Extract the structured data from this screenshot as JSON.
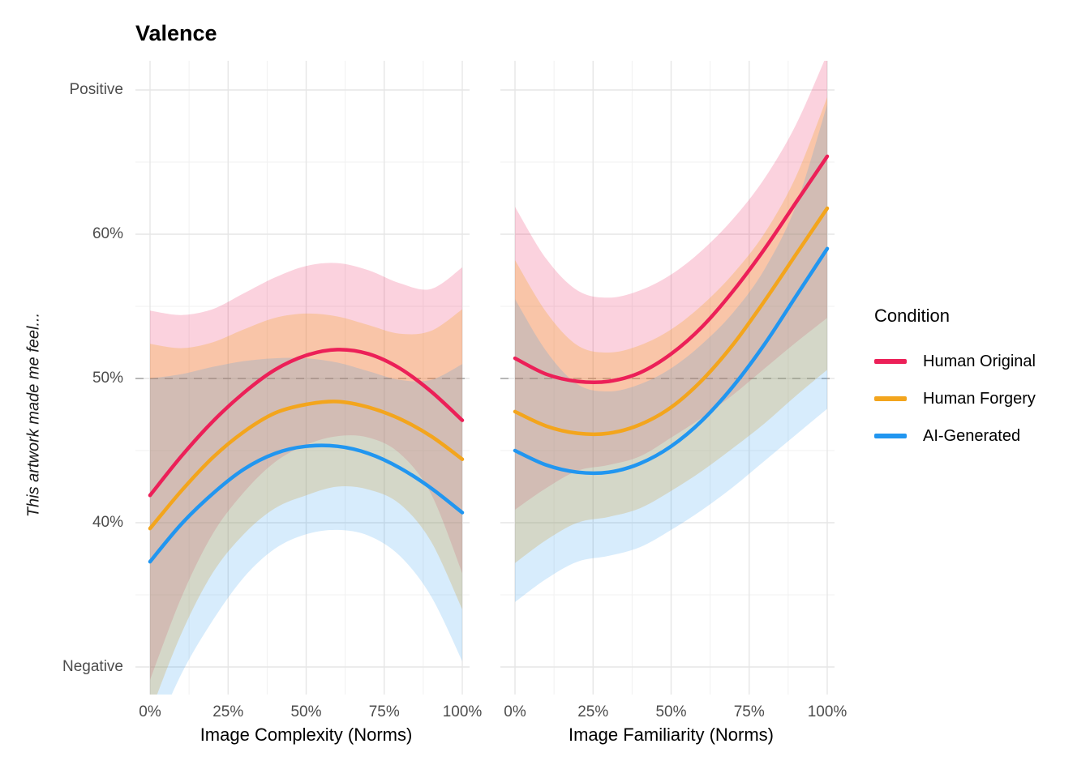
{
  "chart_data": {
    "type": "line",
    "title": "Valence",
    "ylabel": "This artwork made me feel...",
    "y_unit": "percent",
    "ylim": [
      28,
      72
    ],
    "y_ticks": [
      {
        "v": 70,
        "label": "Positive"
      },
      {
        "v": 60,
        "label": "60%"
      },
      {
        "v": 50,
        "label": "50%"
      },
      {
        "v": 40,
        "label": "40%"
      },
      {
        "v": 30,
        "label": "Negative"
      }
    ],
    "y_minor": [
      35,
      45,
      55,
      65
    ],
    "x_ticks": [
      {
        "v": 0,
        "label": "0%"
      },
      {
        "v": 25,
        "label": "25%"
      },
      {
        "v": 50,
        "label": "50%"
      },
      {
        "v": 75,
        "label": "75%"
      },
      {
        "v": 100,
        "label": "100%"
      }
    ],
    "x_minor": [
      12.5,
      37.5,
      62.5,
      87.5
    ],
    "reference_line": 50,
    "grid": "major+minor",
    "legend_position": "right",
    "legend": {
      "title": "Condition",
      "entries": [
        {
          "label": "Human Original",
          "color": "#EC2058"
        },
        {
          "label": "Human Forgery",
          "color": "#F3A51D"
        },
        {
          "label": "AI-Generated",
          "color": "#2196F0"
        }
      ]
    },
    "x": [
      0,
      10,
      20,
      30,
      40,
      50,
      60,
      70,
      80,
      90,
      100
    ],
    "panels": [
      {
        "xlabel": "Image Complexity (Norms)",
        "series": [
          {
            "name": "Human Original",
            "color": "#EC2058",
            "band_alpha": 0.2,
            "y": [
              41.9,
              44.6,
              47.0,
              49.0,
              50.6,
              51.6,
              52.0,
              51.7,
              50.7,
              49.1,
              47.1
            ],
            "hi": [
              54.7,
              54.4,
              54.8,
              55.9,
              57.0,
              57.8,
              58.0,
              57.5,
              56.6,
              56.2,
              57.7
            ],
            "lo": [
              29.1,
              34.8,
              39.2,
              42.1,
              44.2,
              45.4,
              46.0,
              45.9,
              44.8,
              42.0,
              36.5
            ]
          },
          {
            "name": "Human Forgery",
            "color": "#F3A51D",
            "band_alpha": 0.28,
            "y": [
              39.6,
              42.2,
              44.5,
              46.3,
              47.6,
              48.2,
              48.4,
              48.0,
              47.2,
              46.0,
              44.4
            ],
            "hi": [
              52.4,
              52.1,
              52.5,
              53.4,
              54.2,
              54.5,
              54.3,
              53.7,
              53.1,
              53.3,
              54.8
            ],
            "lo": [
              26.8,
              32.3,
              36.5,
              39.2,
              41.0,
              41.9,
              42.5,
              42.3,
              41.3,
              38.7,
              34.0
            ]
          },
          {
            "name": "AI-Generated",
            "color": "#2196F0",
            "band_alpha": 0.18,
            "y": [
              37.3,
              39.9,
              42.0,
              43.7,
              44.8,
              45.3,
              45.3,
              44.8,
              43.8,
              42.4,
              40.7
            ],
            "hi": [
              50.0,
              50.3,
              50.8,
              51.2,
              51.4,
              51.4,
              51.1,
              50.5,
              49.9,
              49.9,
              51.0
            ],
            "lo": [
              24.6,
              29.5,
              33.2,
              36.2,
              38.2,
              39.2,
              39.5,
              39.1,
              37.7,
              34.9,
              30.4
            ]
          }
        ]
      },
      {
        "xlabel": "Image Familiarity (Norms)",
        "series": [
          {
            "name": "Human Original",
            "color": "#EC2058",
            "band_alpha": 0.2,
            "y": [
              51.4,
              50.3,
              49.8,
              49.8,
              50.4,
              51.7,
              53.6,
              56.1,
              59.0,
              62.2,
              65.4
            ],
            "hi": [
              61.9,
              58.3,
              56.1,
              55.6,
              56.1,
              57.2,
              58.9,
              61.1,
              63.9,
              67.6,
              72.5
            ],
            "lo": [
              40.9,
              42.4,
              43.6,
              44.0,
              44.6,
              45.9,
              47.3,
              48.9,
              50.7,
              52.5,
              54.2
            ]
          },
          {
            "name": "Human Forgery",
            "color": "#F3A51D",
            "band_alpha": 0.28,
            "y": [
              47.7,
              46.7,
              46.2,
              46.2,
              46.8,
              48.0,
              49.9,
              52.4,
              55.4,
              58.6,
              61.8
            ],
            "hi": [
              58.2,
              54.6,
              52.3,
              51.8,
              52.3,
              53.4,
              55.1,
              57.3,
              60.1,
              64.0,
              69.5
            ],
            "lo": [
              37.2,
              38.8,
              40.0,
              40.4,
              41.0,
              42.2,
              43.6,
              45.2,
              46.9,
              48.8,
              50.6
            ]
          },
          {
            "name": "AI-Generated",
            "color": "#2196F0",
            "band_alpha": 0.18,
            "y": [
              45.0,
              44.0,
              43.5,
              43.5,
              44.1,
              45.3,
              47.1,
              49.5,
              52.4,
              55.7,
              59.0
            ],
            "hi": [
              55.5,
              51.9,
              49.6,
              49.1,
              49.6,
              50.7,
              52.4,
              54.6,
              57.6,
              62.0,
              69.0
            ],
            "lo": [
              34.5,
              36.1,
              37.3,
              37.7,
              38.3,
              39.5,
              40.9,
              42.5,
              44.3,
              46.1,
              47.9
            ]
          }
        ]
      }
    ],
    "style": {
      "grid_major_color": "#E6E6E6",
      "grid_minor_color": "#F1F1F1",
      "reference_line_color": "#A3A3A3",
      "tick_label_color": "#4d4d4d",
      "line_width": 4.5
    }
  }
}
